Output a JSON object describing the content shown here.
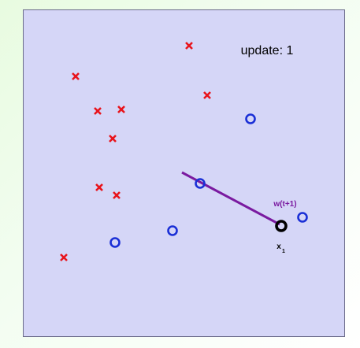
{
  "chart_data": {
    "type": "scatter",
    "title": "update: 1",
    "xlabel": "",
    "ylabel": "",
    "grid": false,
    "series": [
      {
        "name": "",
        "marker": "x",
        "color": "#e8141c",
        "points": [
          [
            210,
            45
          ],
          [
            66,
            84
          ],
          [
            233,
            108
          ],
          [
            94,
            128
          ],
          [
            124,
            126
          ],
          [
            113,
            163
          ],
          [
            96,
            225
          ],
          [
            118,
            235
          ],
          [
            51,
            314
          ]
        ]
      },
      {
        "name": "",
        "marker": "o",
        "color": "#1a2fd6",
        "points": [
          [
            288,
            138
          ],
          [
            224,
            220
          ],
          [
            354,
            263
          ],
          [
            189,
            280
          ],
          [
            116,
            295
          ]
        ]
      }
    ],
    "highlight_point": {
      "label_main": "x",
      "label_sub": "1",
      "point": [
        327,
        274
      ],
      "color": "#000000"
    },
    "weight_vector": {
      "label": "w(t+1)",
      "color": "#7a1aa0",
      "from": [
        201,
        206
      ],
      "to": [
        325,
        272
      ]
    }
  },
  "colors": {
    "plot_bg": "#d5d6f7",
    "frame": "#6b6b8a"
  }
}
